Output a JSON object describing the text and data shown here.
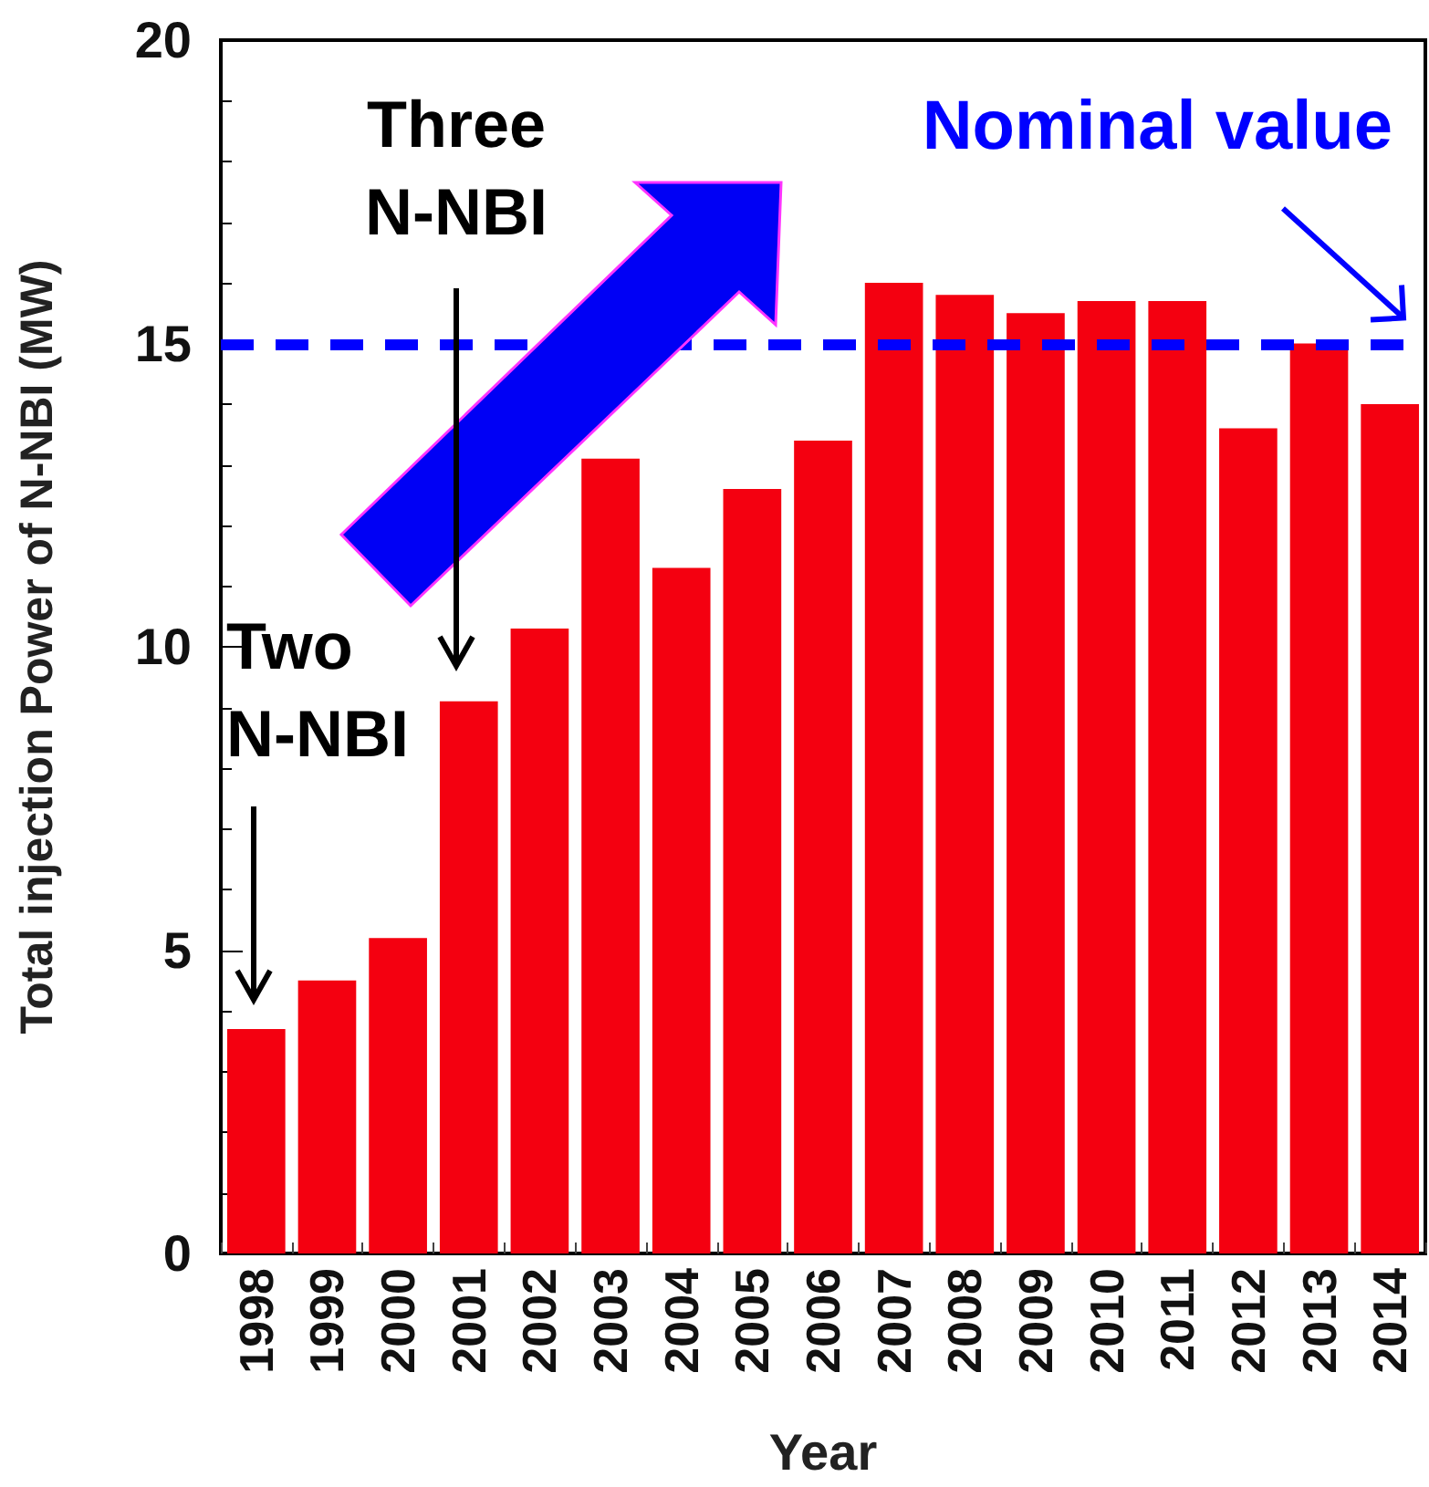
{
  "chart_data": {
    "type": "bar",
    "xlabel": "Year",
    "ylabel": "Total injection Power of N-NBI (MW)",
    "categories": [
      "1998",
      "1999",
      "2000",
      "2001",
      "2002",
      "2003",
      "2004",
      "2005",
      "2006",
      "2007",
      "2008",
      "2009",
      "2010",
      "2011",
      "2012",
      "2013",
      "2014"
    ],
    "values": [
      3.7,
      4.5,
      5.2,
      9.1,
      10.3,
      13.1,
      11.3,
      12.6,
      13.4,
      16.0,
      15.8,
      15.5,
      15.7,
      15.7,
      13.6,
      15.0,
      14.0
    ],
    "color": "#f40010",
    "ylim": [
      0,
      20
    ],
    "yticks": [
      0,
      5,
      10,
      15,
      20
    ],
    "grid": false,
    "ref_lines": [
      {
        "axis": "y",
        "value": 15,
        "label": "Nominal value",
        "color": "#0000ff",
        "line_style": "dashed"
      }
    ],
    "annotations": [
      "Three\nN-NBI",
      "Two\nN-NBI"
    ]
  }
}
